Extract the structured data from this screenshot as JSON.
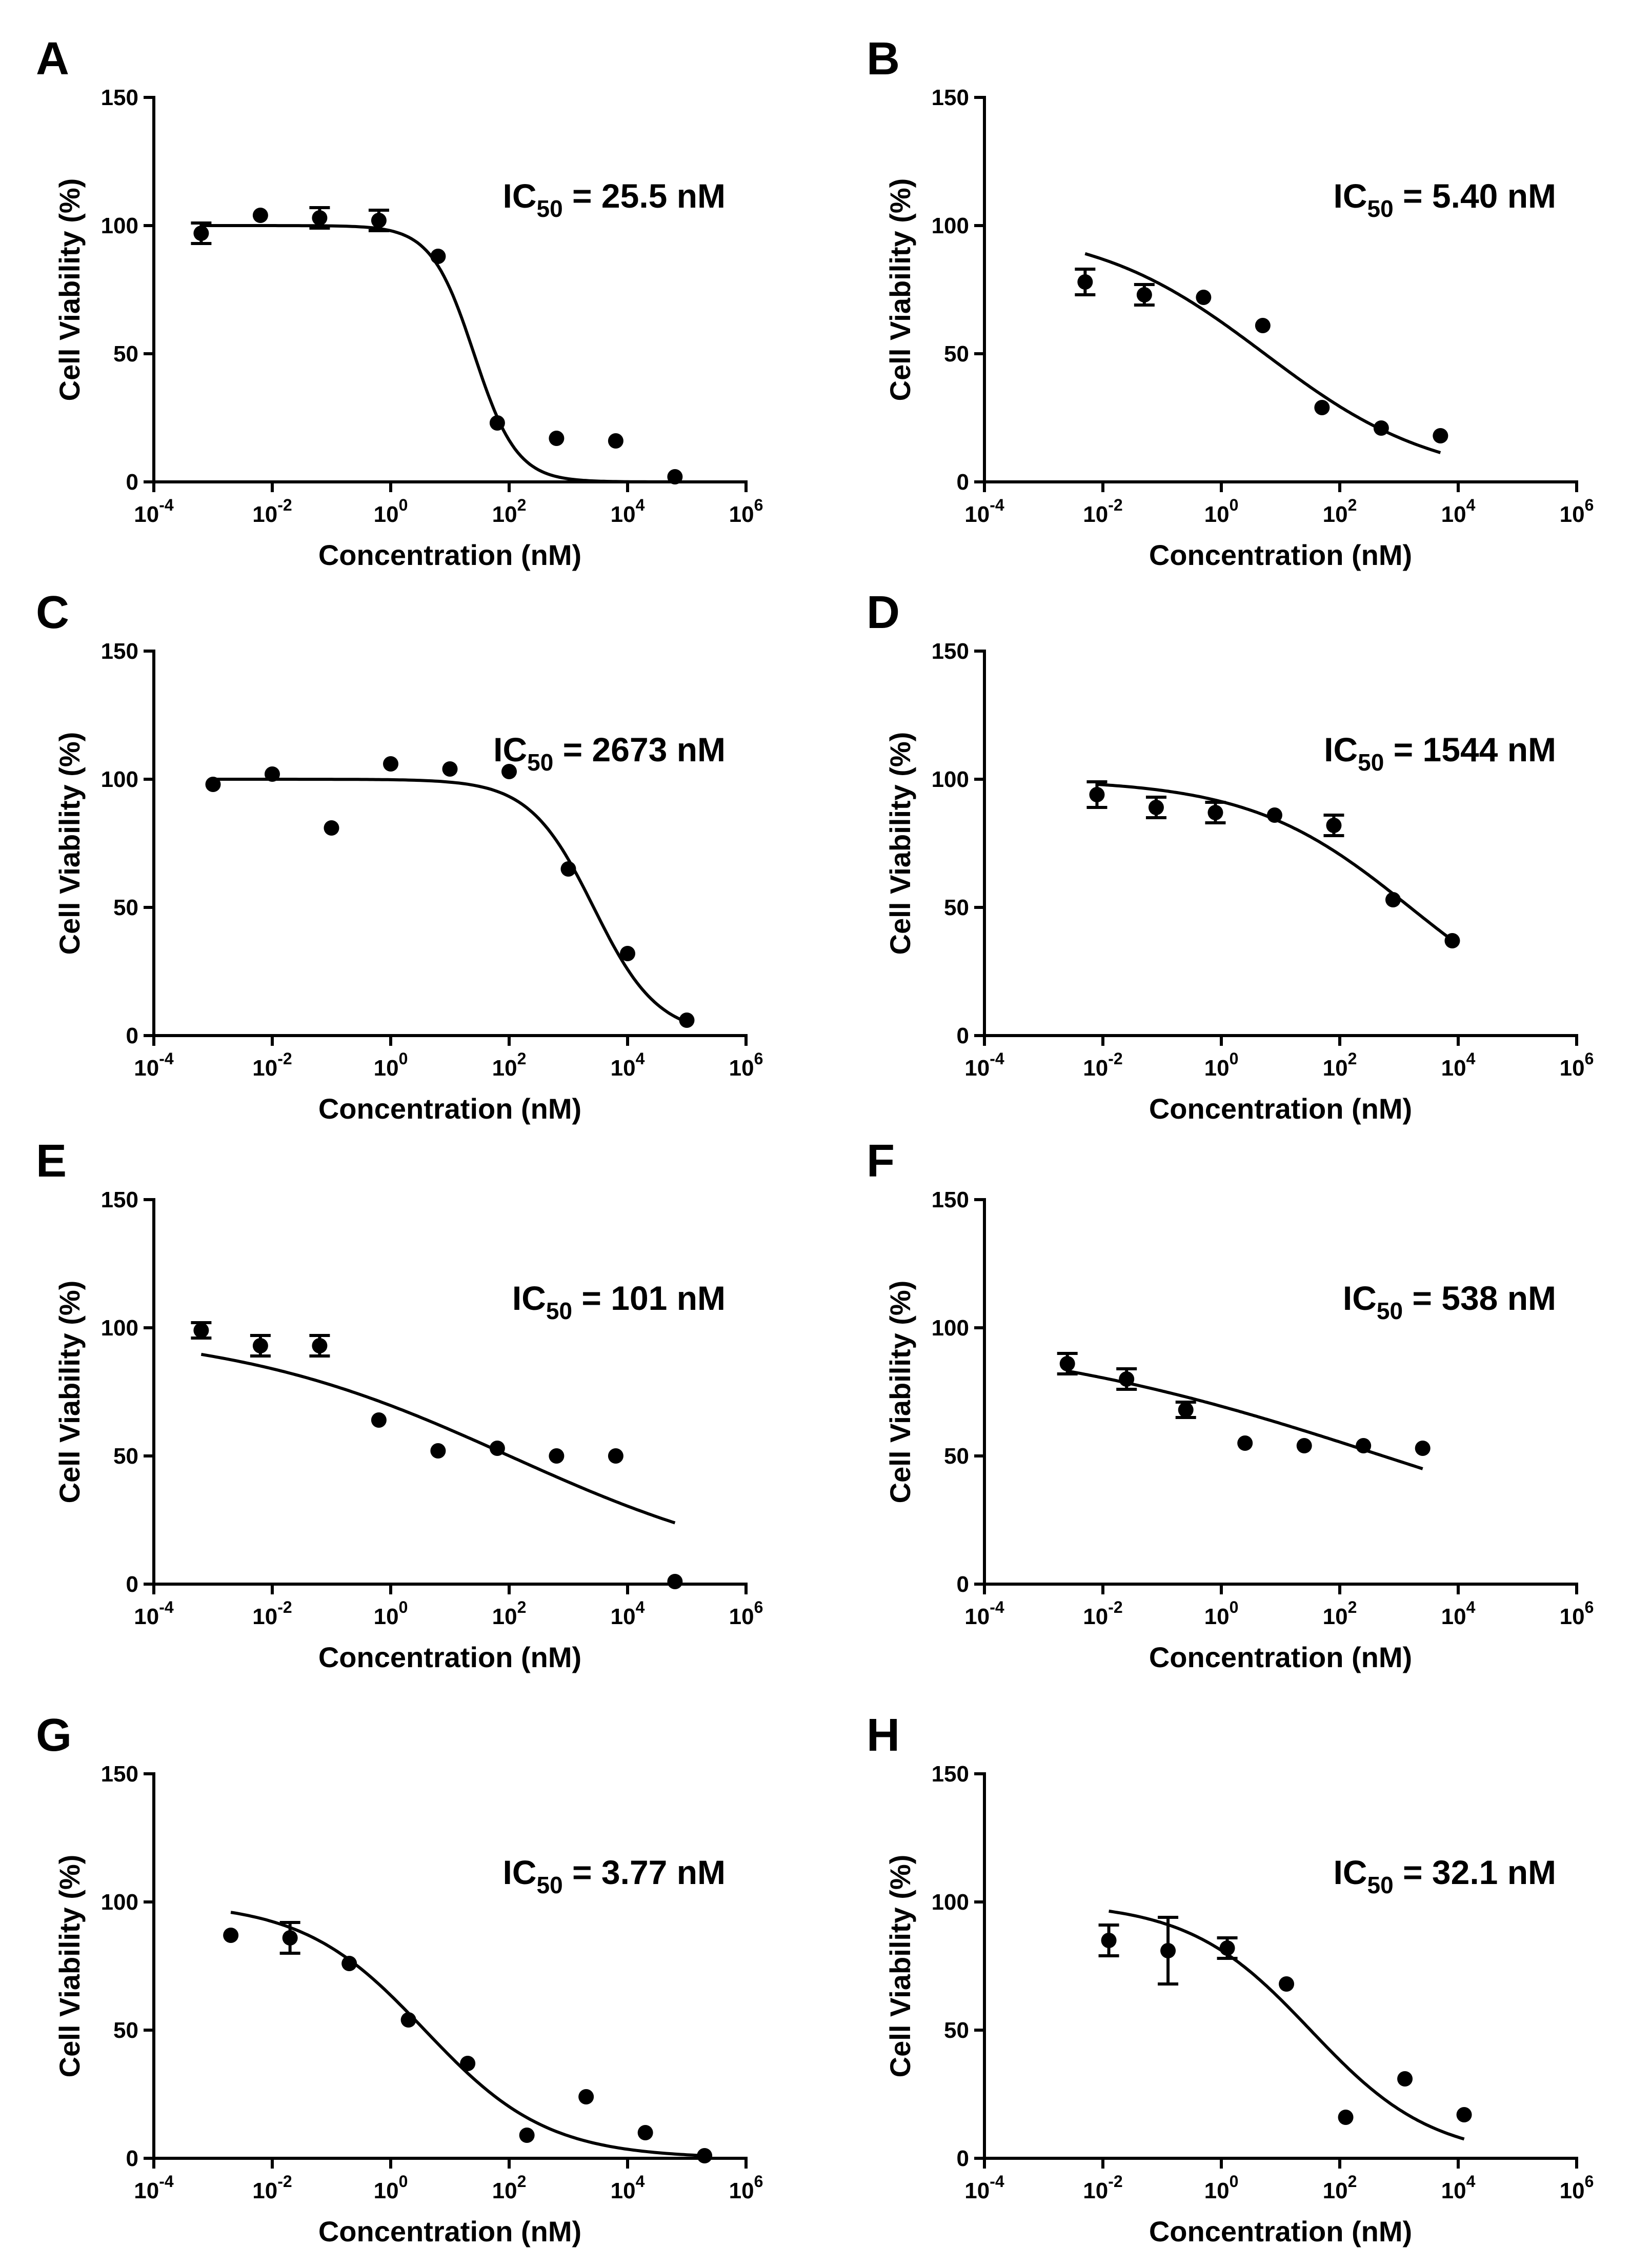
{
  "figure": {
    "description_free": true,
    "xlabel": "Concentration (nM)",
    "ylabel": "Cell Viability (%)"
  },
  "chart_data": [
    {
      "panel": "A",
      "type": "scatter",
      "ic50": {
        "prefix": "IC",
        "sub": "50",
        "suffix": " = 25.5 nM",
        "value": 25.5
      },
      "xlabel": "Concentration (nM)",
      "ylabel": "Cell Viability (%)",
      "xscale": "log10",
      "xlim_exp": [
        -4,
        6
      ],
      "ylim": [
        0,
        150
      ],
      "xticks_exp": [
        -4,
        -2,
        0,
        2,
        4,
        6
      ],
      "yticks": [
        0,
        50,
        100,
        150
      ],
      "points_logx": [
        -3.2,
        -2.2,
        -1.2,
        -0.2,
        0.8,
        1.8,
        2.8,
        3.8,
        4.8
      ],
      "y": [
        97,
        104,
        103,
        102,
        88,
        23,
        17,
        16,
        2
      ],
      "err": [
        4,
        0,
        4,
        4,
        0,
        0,
        0,
        0,
        0
      ],
      "fit": {
        "top": 100,
        "bottom": 0,
        "hill": 1.2,
        "logx_range": [
          -3.2,
          4.8
        ]
      }
    },
    {
      "panel": "B",
      "type": "scatter",
      "ic50": {
        "prefix": "IC",
        "sub": "50",
        "suffix": " = 5.40 nM",
        "value": 5.4
      },
      "xlabel": "Concentration (nM)",
      "ylabel": "Cell Viability (%)",
      "xscale": "log10",
      "xlim_exp": [
        -4,
        6
      ],
      "ylim": [
        0,
        150
      ],
      "xticks_exp": [
        -4,
        -2,
        0,
        2,
        4,
        6
      ],
      "yticks": [
        0,
        50,
        100,
        150
      ],
      "points_logx": [
        -2.3,
        -1.3,
        -0.3,
        0.7,
        1.7,
        2.7,
        3.7
      ],
      "y": [
        78,
        73,
        72,
        61,
        29,
        21,
        18
      ],
      "err": [
        5,
        4,
        0,
        0,
        0,
        0,
        0
      ],
      "fit": {
        "top": 100,
        "bottom": 0,
        "hill": 0.3,
        "logx_range": [
          -2.3,
          3.7
        ]
      }
    },
    {
      "panel": "C",
      "type": "scatter",
      "ic50": {
        "prefix": "IC",
        "sub": "50",
        "suffix": " = 2673 nM",
        "value": 2673
      },
      "xlabel": "Concentration (nM)",
      "ylabel": "Cell Viability (%)",
      "xscale": "log10",
      "xlim_exp": [
        -4,
        6
      ],
      "ylim": [
        0,
        150
      ],
      "xticks_exp": [
        -4,
        -2,
        0,
        2,
        4,
        6
      ],
      "yticks": [
        0,
        50,
        100,
        150
      ],
      "points_logx": [
        -3.0,
        -2.0,
        -1.0,
        0.0,
        1.0,
        2.0,
        3.0,
        4.0,
        5.0
      ],
      "y": [
        98,
        102,
        81,
        106,
        104,
        103,
        65,
        32,
        6
      ],
      "err": [
        0,
        0,
        0,
        0,
        0,
        0,
        0,
        0,
        0
      ],
      "fit": {
        "top": 100,
        "bottom": 0,
        "hill": 0.8,
        "logx_range": [
          -3.0,
          5.0
        ]
      }
    },
    {
      "panel": "D",
      "type": "scatter",
      "ic50": {
        "prefix": "IC",
        "sub": "50",
        "suffix": " = 1544 nM",
        "value": 1544
      },
      "xlabel": "Concentration (nM)",
      "ylabel": "Cell Viability (%)",
      "xscale": "log10",
      "xlim_exp": [
        -4,
        6
      ],
      "ylim": [
        0,
        150
      ],
      "xticks_exp": [
        -4,
        -2,
        0,
        2,
        4,
        6
      ],
      "yticks": [
        0,
        50,
        100,
        150
      ],
      "points_logx": [
        -2.1,
        -1.1,
        -0.1,
        0.9,
        1.9,
        2.9,
        3.9
      ],
      "y": [
        94,
        89,
        87,
        86,
        82,
        53,
        37
      ],
      "err": [
        5,
        4,
        4,
        0,
        4,
        0,
        0
      ],
      "fit": {
        "top": 100,
        "bottom": 0,
        "hill": 0.32,
        "logx_range": [
          -2.1,
          3.9
        ]
      }
    },
    {
      "panel": "E",
      "type": "scatter",
      "ic50": {
        "prefix": "IC",
        "sub": "50",
        "suffix": " = 101 nM",
        "value": 101
      },
      "xlabel": "Concentration (nM)",
      "ylabel": "Cell Viability (%)",
      "xscale": "log10",
      "xlim_exp": [
        -4,
        6
      ],
      "ylim": [
        0,
        150
      ],
      "xticks_exp": [
        -4,
        -2,
        0,
        2,
        4,
        6
      ],
      "yticks": [
        0,
        50,
        100,
        150
      ],
      "points_logx": [
        -3.2,
        -2.2,
        -1.2,
        -0.2,
        0.8,
        1.8,
        2.8,
        3.8,
        4.8
      ],
      "y": [
        99,
        93,
        93,
        64,
        52,
        53,
        50,
        50,
        1
      ],
      "err": [
        3,
        4,
        4,
        0,
        0,
        0,
        0,
        0,
        0
      ],
      "fit": {
        "top": 100,
        "bottom": 0,
        "hill": 0.18,
        "logx_range": [
          -3.2,
          4.8
        ]
      }
    },
    {
      "panel": "F",
      "type": "scatter",
      "ic50": {
        "prefix": "IC",
        "sub": "50",
        "suffix": " = 538 nM",
        "value": 538
      },
      "xlabel": "Concentration (nM)",
      "ylabel": "Cell Viability (%)",
      "xscale": "log10",
      "xlim_exp": [
        -4,
        6
      ],
      "ylim": [
        0,
        150
      ],
      "xticks_exp": [
        -4,
        -2,
        0,
        2,
        4,
        6
      ],
      "yticks": [
        0,
        50,
        100,
        150
      ],
      "points_logx": [
        -2.6,
        -1.6,
        -0.6,
        0.4,
        1.4,
        2.4,
        3.4
      ],
      "y": [
        86,
        80,
        68,
        55,
        54,
        54,
        53
      ],
      "err": [
        4,
        4,
        3,
        0,
        0,
        0,
        0
      ],
      "fit": {
        "top": 100,
        "bottom": 0,
        "hill": 0.13,
        "logx_range": [
          -2.6,
          3.4
        ]
      }
    },
    {
      "panel": "G",
      "type": "scatter",
      "ic50": {
        "prefix": "IC",
        "sub": "50",
        "suffix": " = 3.77 nM",
        "value": 3.77
      },
      "xlabel": "Concentration (nM)",
      "ylabel": "Cell Viability (%)",
      "xscale": "log10",
      "xlim_exp": [
        -4,
        6
      ],
      "ylim": [
        0,
        150
      ],
      "xticks_exp": [
        -4,
        -2,
        0,
        2,
        4,
        6
      ],
      "yticks": [
        0,
        50,
        100,
        150
      ],
      "points_logx": [
        -2.7,
        -1.7,
        -0.7,
        0.3,
        1.3,
        2.3,
        3.3,
        4.3,
        5.3
      ],
      "y": [
        87,
        86,
        76,
        54,
        37,
        9,
        24,
        10,
        1
      ],
      "err": [
        0,
        6,
        0,
        0,
        0,
        0,
        0,
        0,
        0
      ],
      "fit": {
        "top": 100,
        "bottom": 0,
        "hill": 0.42,
        "logx_range": [
          -2.7,
          5.3
        ]
      }
    },
    {
      "panel": "H",
      "type": "scatter",
      "ic50": {
        "prefix": "IC",
        "sub": "50",
        "suffix": " = 32.1 nM",
        "value": 32.1
      },
      "xlabel": "Concentration (nM)",
      "ylabel": "Cell Viability (%)",
      "xscale": "log10",
      "xlim_exp": [
        -4,
        6
      ],
      "ylim": [
        0,
        150
      ],
      "xticks_exp": [
        -4,
        -2,
        0,
        2,
        4,
        6
      ],
      "yticks": [
        0,
        50,
        100,
        150
      ],
      "points_logx": [
        -1.9,
        -0.9,
        0.1,
        1.1,
        2.1,
        3.1,
        4.1
      ],
      "y": [
        85,
        81,
        82,
        68,
        16,
        31,
        17
      ],
      "err": [
        6,
        13,
        4,
        0,
        0,
        0,
        0
      ],
      "fit": {
        "top": 100,
        "bottom": 0,
        "hill": 0.42,
        "logx_range": [
          -1.9,
          4.1
        ]
      }
    }
  ]
}
